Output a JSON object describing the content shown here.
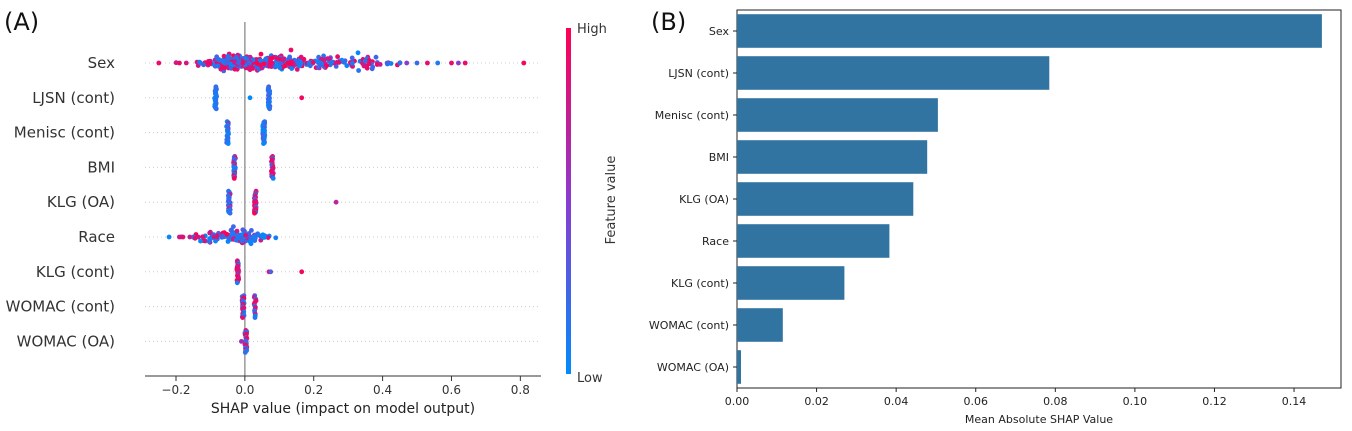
{
  "panels": {
    "a_label": "(A)",
    "b_label": "(B)"
  },
  "colors": {
    "high": "#ff0052",
    "low": "#008bfb",
    "bar": "#3274a1",
    "zero_line": "#999999",
    "grid_dots": "#cccccc"
  },
  "chart_data": [
    {
      "type": "scatter",
      "subtype": "shap-beeswarm",
      "xlabel": "SHAP value (impact on model output)",
      "xlim": [
        -0.29,
        0.86
      ],
      "xticks": [
        -0.2,
        0.0,
        0.2,
        0.4,
        0.6,
        0.8
      ],
      "xtick_labels": [
        "−0.2",
        "0.0",
        "0.2",
        "0.4",
        "0.6",
        "0.8"
      ],
      "features": [
        "Sex",
        "LJSN (cont)",
        "Menisc (cont)",
        "BMI",
        "KLG (OA)",
        "Race",
        "KLG (cont)",
        "WOMAC (cont)",
        "WOMAC (OA)"
      ],
      "colorbar": {
        "label": "Feature value",
        "high_label": "High",
        "low_label": "Low"
      },
      "feature_points": {
        "Sex": {
          "clusters": [
            {
              "center": -0.03,
              "spread": 0.05,
              "count": 180,
              "mix": 0.5
            },
            {
              "center": 0.07,
              "spread": 0.06,
              "count": 150,
              "mix": 0.5
            },
            {
              "center": 0.18,
              "spread": 0.08,
              "count": 90,
              "mix": 0.55
            },
            {
              "center": 0.33,
              "spread": 0.07,
              "count": 45,
              "mix": 0.55
            }
          ],
          "singles": [
            [
              -0.25,
              0.9
            ],
            [
              -0.17,
              0.8
            ],
            [
              -0.19,
              0.9
            ],
            [
              0.45,
              0.1
            ],
            [
              0.47,
              0.5
            ],
            [
              0.5,
              0.2
            ],
            [
              0.53,
              0.9
            ],
            [
              0.56,
              0.1
            ],
            [
              0.6,
              0.9
            ],
            [
              0.62,
              0.5
            ],
            [
              0.64,
              0.9
            ],
            [
              0.81,
              0.95
            ]
          ]
        },
        "LJSN (cont)": {
          "clusters": [
            {
              "center": -0.085,
              "spread": 0.0,
              "count": 28,
              "mix": 0.0
            },
            {
              "center": 0.07,
              "spread": 0.0,
              "count": 26,
              "mix": 0.02
            }
          ],
          "singles": [
            [
              0.015,
              0.0
            ],
            [
              0.165,
              0.95
            ]
          ]
        },
        "Menisc (cont)": {
          "clusters": [
            {
              "center": -0.05,
              "spread": 0.0,
              "count": 24,
              "mix": 0.1
            },
            {
              "center": 0.055,
              "spread": 0.0,
              "count": 28,
              "mix": 0.0
            }
          ],
          "singles": []
        },
        "BMI": {
          "clusters": [
            {
              "center": -0.03,
              "spread": 0.0,
              "count": 26,
              "mix": 0.25
            },
            {
              "center": 0.08,
              "spread": 0.0,
              "count": 22,
              "mix": 0.85
            }
          ],
          "singles": []
        },
        "KLG (OA)": {
          "clusters": [
            {
              "center": -0.045,
              "spread": 0.0,
              "count": 26,
              "mix": 0.15
            },
            {
              "center": 0.03,
              "spread": 0.0,
              "count": 26,
              "mix": 0.6
            }
          ],
          "singles": [
            [
              0.265,
              0.7
            ]
          ]
        },
        "Race": {
          "clusters": [
            {
              "center": -0.015,
              "spread": 0.04,
              "count": 120,
              "mix": 0.15
            },
            {
              "center": -0.1,
              "spread": 0.03,
              "count": 25,
              "mix": 0.6
            }
          ],
          "singles": [
            [
              -0.22,
              0.05
            ],
            [
              -0.19,
              0.8
            ],
            [
              -0.18,
              0.9
            ],
            [
              -0.16,
              0.7
            ]
          ]
        },
        "KLG (cont)": {
          "clusters": [
            {
              "center": -0.02,
              "spread": 0.0,
              "count": 26,
              "mix": 0.85
            }
          ],
          "singles": [
            [
              0.07,
              0.9
            ],
            [
              0.075,
              0.3
            ],
            [
              0.165,
              0.95
            ]
          ]
        },
        "WOMAC (cont)": {
          "clusters": [
            {
              "center": -0.005,
              "spread": 0.0,
              "count": 24,
              "mix": 0.5
            },
            {
              "center": 0.03,
              "spread": 0.0,
              "count": 14,
              "mix": 0.6
            }
          ],
          "singles": []
        },
        "WOMAC (OA)": {
          "clusters": [
            {
              "center": 0.003,
              "spread": 0.0,
              "count": 26,
              "mix": 0.55
            }
          ],
          "singles": [
            [
              -0.01,
              0.6
            ]
          ]
        }
      }
    },
    {
      "type": "bar",
      "orientation": "horizontal",
      "xlabel": "Mean Absolute SHAP Value",
      "xlim": [
        0,
        0.1518
      ],
      "xticks": [
        0.0,
        0.02,
        0.04,
        0.06,
        0.08,
        0.1,
        0.12,
        0.14
      ],
      "xtick_labels": [
        "0.00",
        "0.02",
        "0.04",
        "0.06",
        "0.08",
        "0.10",
        "0.12",
        "0.14"
      ],
      "categories": [
        "Sex",
        "LJSN (cont)",
        "Menisc (cont)",
        "BMI",
        "KLG (OA)",
        "Race",
        "KLG (cont)",
        "WOMAC (cont)",
        "WOMAC (OA)"
      ],
      "values": [
        0.147,
        0.0785,
        0.0505,
        0.0478,
        0.0443,
        0.0383,
        0.027,
        0.0115,
        0.001
      ]
    }
  ]
}
